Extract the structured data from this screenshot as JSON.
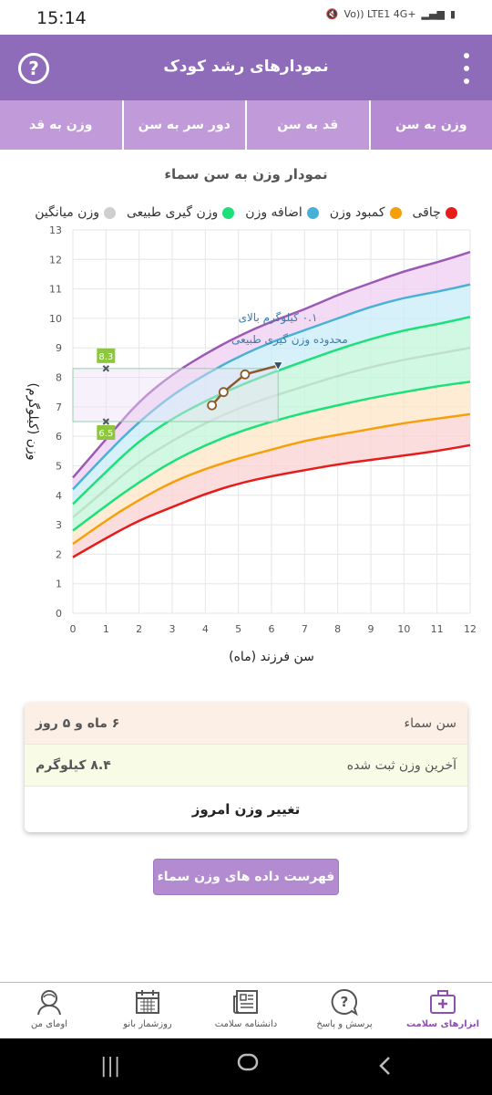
{
  "status": {
    "time": "15:14",
    "icons": [
      "mute-icon",
      "volte-icon",
      "signal-icon",
      "4g-icon",
      "signal-icon",
      "battery-icon"
    ],
    "network_text": "Vo)) LTE1 4G+"
  },
  "app": {
    "title": "نمودارهای رشد کودک",
    "help_label": "?",
    "accent_color": "#8e6cba"
  },
  "tabs": [
    {
      "label": "وزن به سن",
      "active": true
    },
    {
      "label": "قد به سن",
      "active": false
    },
    {
      "label": "دور سر به سن",
      "active": false
    },
    {
      "label": "وزن به قد",
      "active": false
    }
  ],
  "chart_title": "نمودار وزن به سن سماء",
  "legend": [
    {
      "label": "چاقی",
      "color": "#e51c1c"
    },
    {
      "label": "کمبود وزن",
      "color": "#f5a00a"
    },
    {
      "label": "اضافه وزن",
      "color": "#4ab1d6"
    },
    {
      "label": "وزن گیری طبیعی",
      "color": "#1de07a"
    },
    {
      "label": "وزن میانگین",
      "color": "#cfcfcf"
    }
  ],
  "chart_data": {
    "type": "line",
    "xlabel": "سن فرزند (ماه)",
    "ylabel": "وزن (کیلوگرم)",
    "xlim": [
      0,
      12
    ],
    "ylim": [
      0,
      13
    ],
    "x_ticks": [
      0,
      1,
      2,
      3,
      4,
      5,
      6,
      7,
      8,
      9,
      10,
      11,
      12
    ],
    "y_ticks": [
      0,
      1,
      2,
      3,
      4,
      5,
      6,
      7,
      8,
      9,
      10,
      11,
      12,
      13
    ],
    "x": [
      0,
      1,
      2,
      3,
      4,
      5,
      6,
      7,
      8,
      9,
      10,
      11,
      12
    ],
    "series": [
      {
        "color": "#9b59b6",
        "values": [
          4.6,
          5.9,
          7.2,
          8.1,
          8.8,
          9.4,
          9.9,
          10.3,
          10.8,
          11.2,
          11.6,
          11.9,
          12.25
        ]
      },
      {
        "color": "#4ab1d6",
        "values": [
          4.2,
          5.4,
          6.5,
          7.4,
          8.1,
          8.7,
          9.2,
          9.6,
          10.0,
          10.4,
          10.7,
          10.9,
          11.15
        ]
      },
      {
        "color": "#1de07a",
        "values": [
          3.7,
          4.8,
          5.85,
          6.6,
          7.2,
          7.7,
          8.15,
          8.55,
          8.95,
          9.3,
          9.6,
          9.8,
          10.05
        ]
      },
      {
        "color": "#bfe0c8",
        "values": [
          3.25,
          4.2,
          5.15,
          5.85,
          6.45,
          6.95,
          7.35,
          7.7,
          8.05,
          8.35,
          8.6,
          8.8,
          9.0
        ]
      },
      {
        "color": "#1de07a",
        "values": [
          2.8,
          3.65,
          4.45,
          5.15,
          5.7,
          6.15,
          6.5,
          6.8,
          7.05,
          7.3,
          7.5,
          7.7,
          7.85
        ]
      },
      {
        "color": "#f5a00a",
        "values": [
          2.35,
          3.15,
          3.85,
          4.45,
          4.9,
          5.25,
          5.55,
          5.85,
          6.05,
          6.25,
          6.45,
          6.6,
          6.75
        ]
      },
      {
        "color": "#e51c1c",
        "values": [
          1.9,
          2.55,
          3.15,
          3.6,
          4.05,
          4.4,
          4.65,
          4.85,
          5.05,
          5.2,
          5.35,
          5.5,
          5.7
        ]
      }
    ],
    "child_series": {
      "color": "#8b5a2b",
      "x": [
        4.2,
        4.55,
        5.2,
        6.2
      ],
      "values": [
        7.05,
        7.5,
        8.1,
        8.4
      ]
    },
    "reference_range": {
      "low": 6.5,
      "high": 8.3,
      "x_marker": 1,
      "x_end": 6.2
    },
    "annotation_line1": "۰.۱ کیلوگرم بالای",
    "annotation_line2": "محدوده وزن گیری طبیعی"
  },
  "info": {
    "age_label": "سن سماء",
    "age_value": "۶ ماه و ۵ روز",
    "weight_label": "آخرین وزن ثبت شده",
    "weight_value": "۸.۴ کیلوگرم",
    "change_weight_label": "تغییر وزن امروز"
  },
  "list_button_label": "فهرست داده های وزن سماء",
  "bottom_nav": [
    {
      "label": "ابزارهای سلامت",
      "icon": "medical-kit-icon",
      "active": true
    },
    {
      "label": "پرسش و پاسخ",
      "icon": "question-bubble-icon",
      "active": false
    },
    {
      "label": "دانشنامه سلامت",
      "icon": "newspaper-icon",
      "active": false
    },
    {
      "label": "روزشمار بانو",
      "icon": "calendar-icon",
      "active": false
    },
    {
      "label": "اومای من",
      "icon": "user-profile-icon",
      "active": false
    }
  ],
  "system_nav": [
    "recent-apps-icon",
    "home-icon",
    "back-icon"
  ]
}
